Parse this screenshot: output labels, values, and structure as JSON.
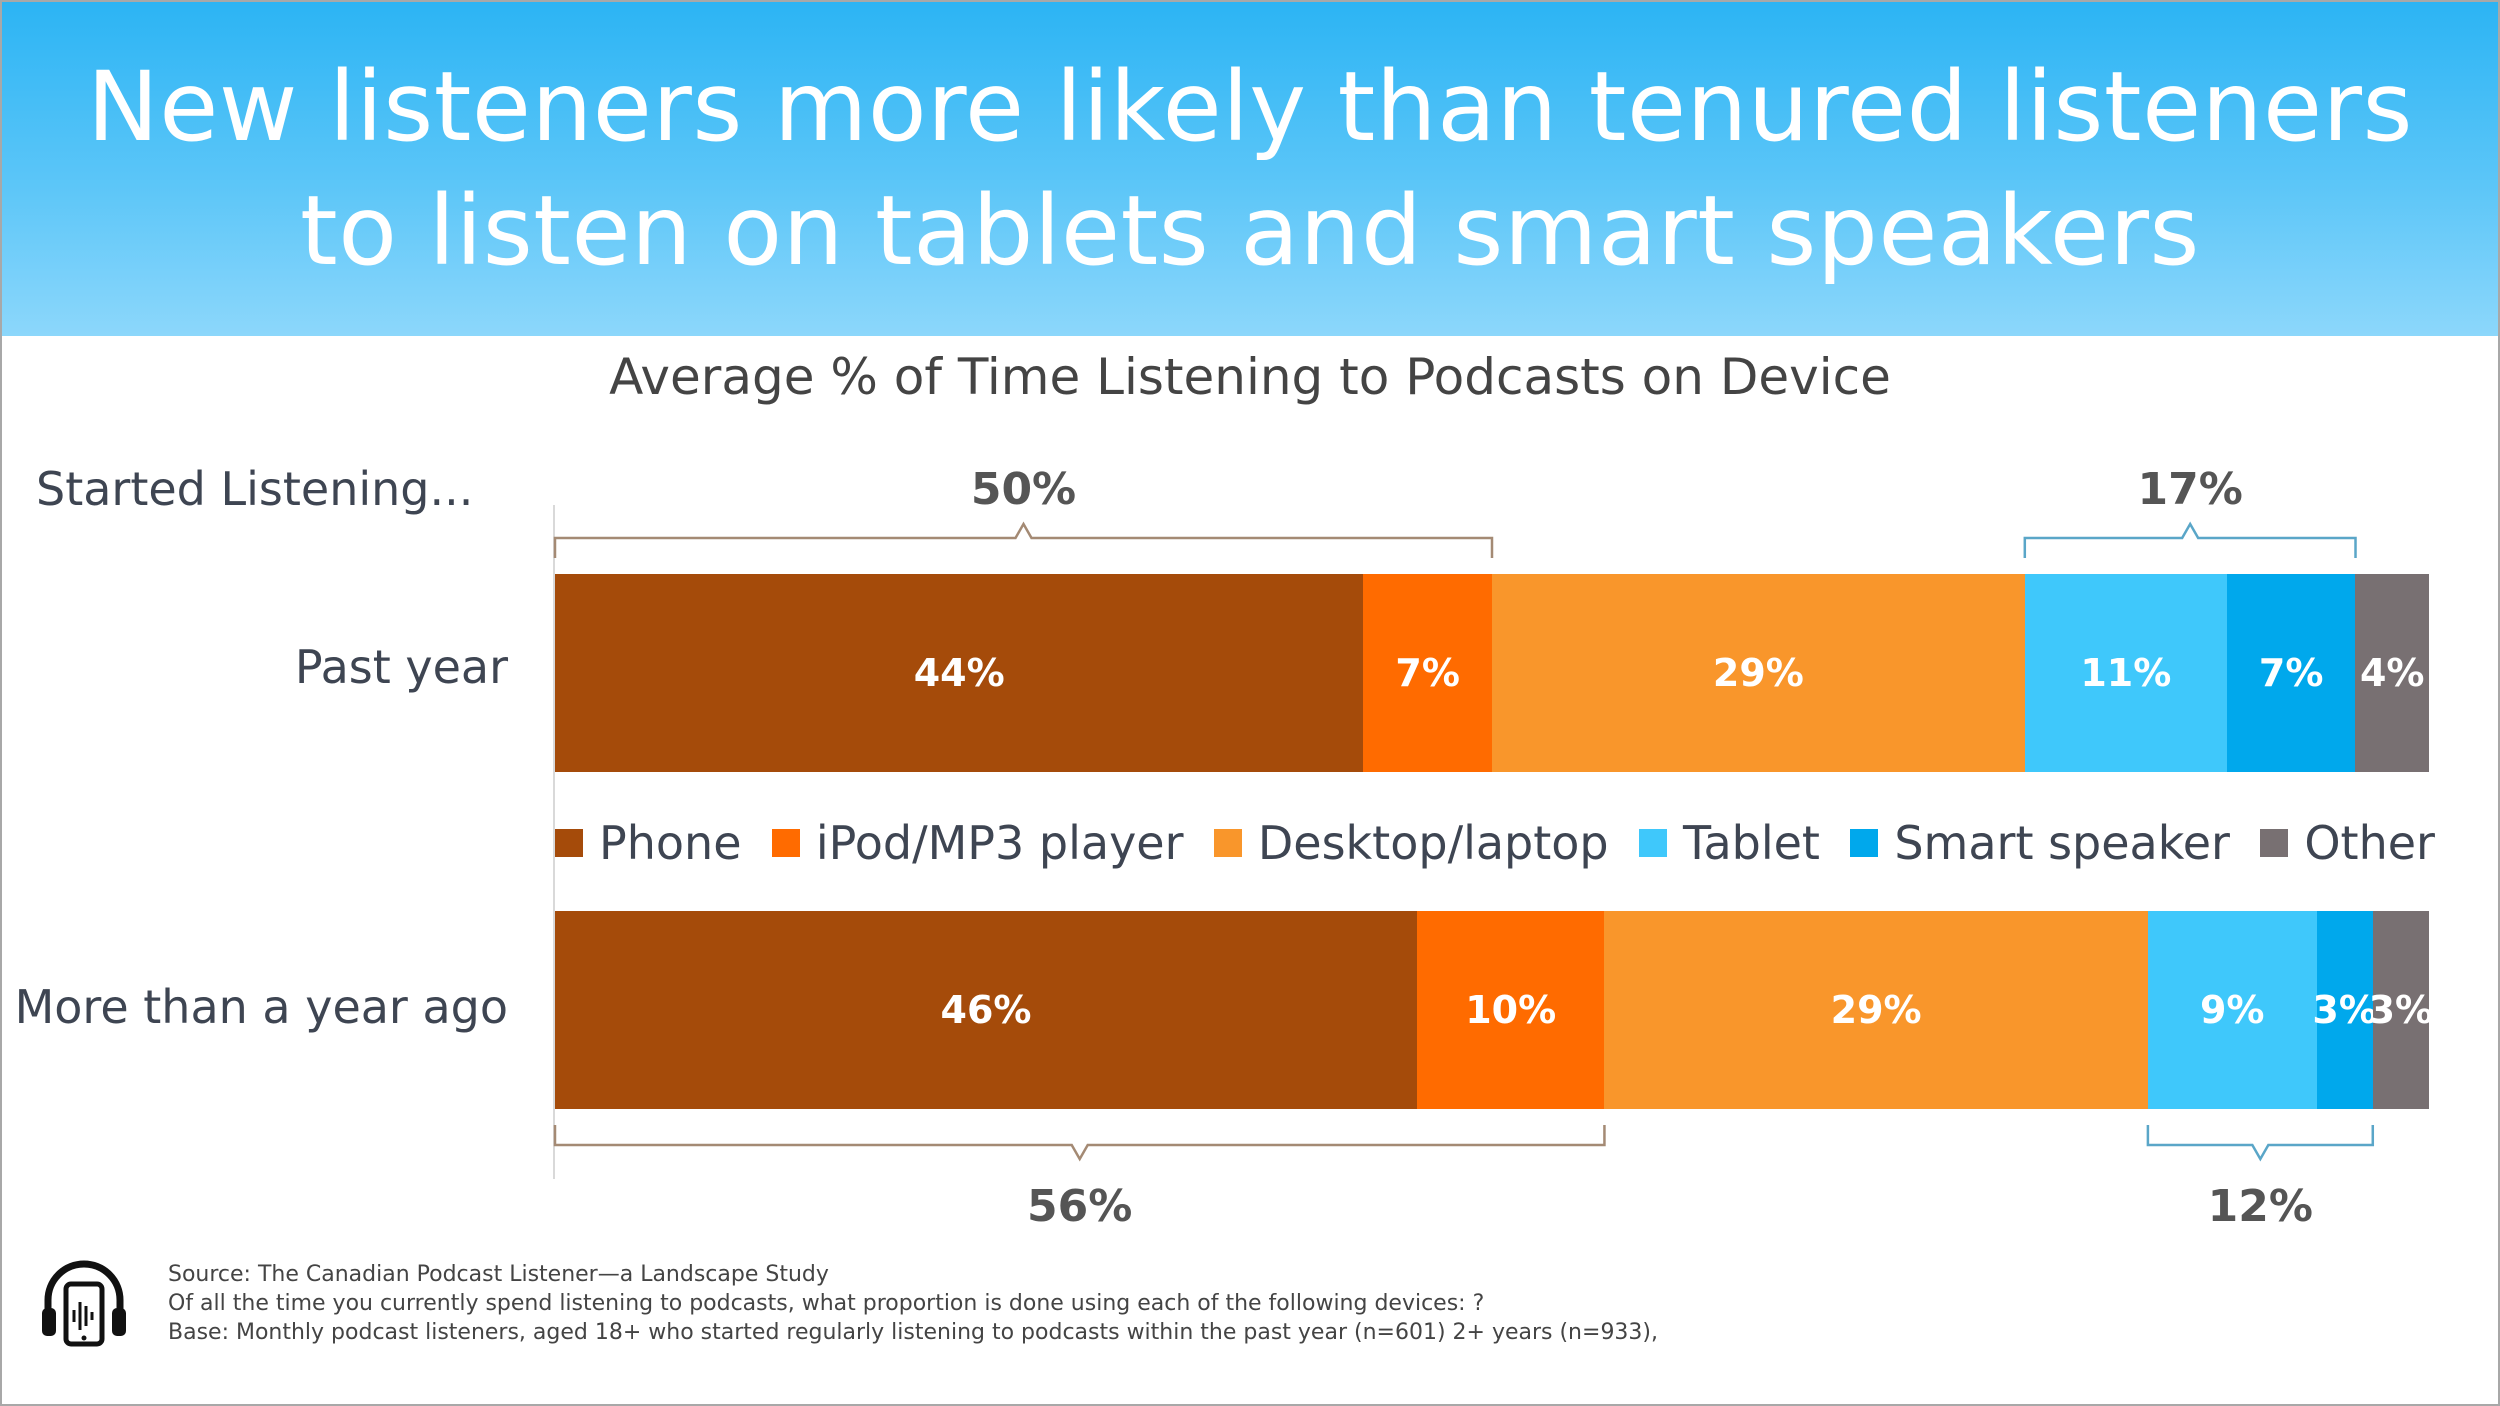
{
  "header": {
    "title_line1": "New listeners more likely than tenured listeners",
    "title_line2": "to listen on tablets and smart speakers"
  },
  "chart_data": {
    "type": "bar",
    "orientation": "horizontal-stacked",
    "subtitle": "Average % of Time Listening to Podcasts on Device",
    "group_label": "Started Listening...",
    "categories": [
      "Past year",
      "More than a year ago"
    ],
    "series": [
      {
        "name": "Phone",
        "color": "#a54b0a",
        "values": [
          44,
          46
        ]
      },
      {
        "name": "iPod/MP3 player",
        "color": "#ff6b00",
        "values": [
          7,
          10
        ]
      },
      {
        "name": "Desktop/laptop",
        "color": "#f9962b",
        "values": [
          29,
          29
        ]
      },
      {
        "name": "Tablet",
        "color": "#3fc8fb",
        "values": [
          11,
          9
        ]
      },
      {
        "name": "Smart speaker",
        "color": "#00a8ec",
        "values": [
          7,
          3
        ]
      },
      {
        "name": "Other",
        "color": "#787072",
        "values": [
          4,
          3
        ]
      }
    ],
    "legend_position": "between-bars",
    "brackets": [
      {
        "row": 0,
        "from": 0,
        "to": 1,
        "label": "50%",
        "color": "#a48a74",
        "position": "top"
      },
      {
        "row": 0,
        "from": 3,
        "to": 4,
        "label": "17%",
        "color": "#5aa6c8",
        "position": "top"
      },
      {
        "row": 1,
        "from": 0,
        "to": 1,
        "label": "56%",
        "color": "#a48a74",
        "position": "bottom"
      },
      {
        "row": 1,
        "from": 3,
        "to": 4,
        "label": "12%",
        "color": "#5aa6c8",
        "position": "bottom"
      }
    ]
  },
  "footer": {
    "source": "Source:  The Canadian Podcast Listener—a Landscape Study",
    "question": "Of all the time you currently spend listening to podcasts, what proportion is done using each of the following devices: ?",
    "base": "Base: Monthly podcast listeners, aged 18+ who started regularly listening to podcasts within the past year (n=601) 2+ years (n=933),"
  },
  "icons": {
    "logo": "headphones-phone-icon"
  }
}
